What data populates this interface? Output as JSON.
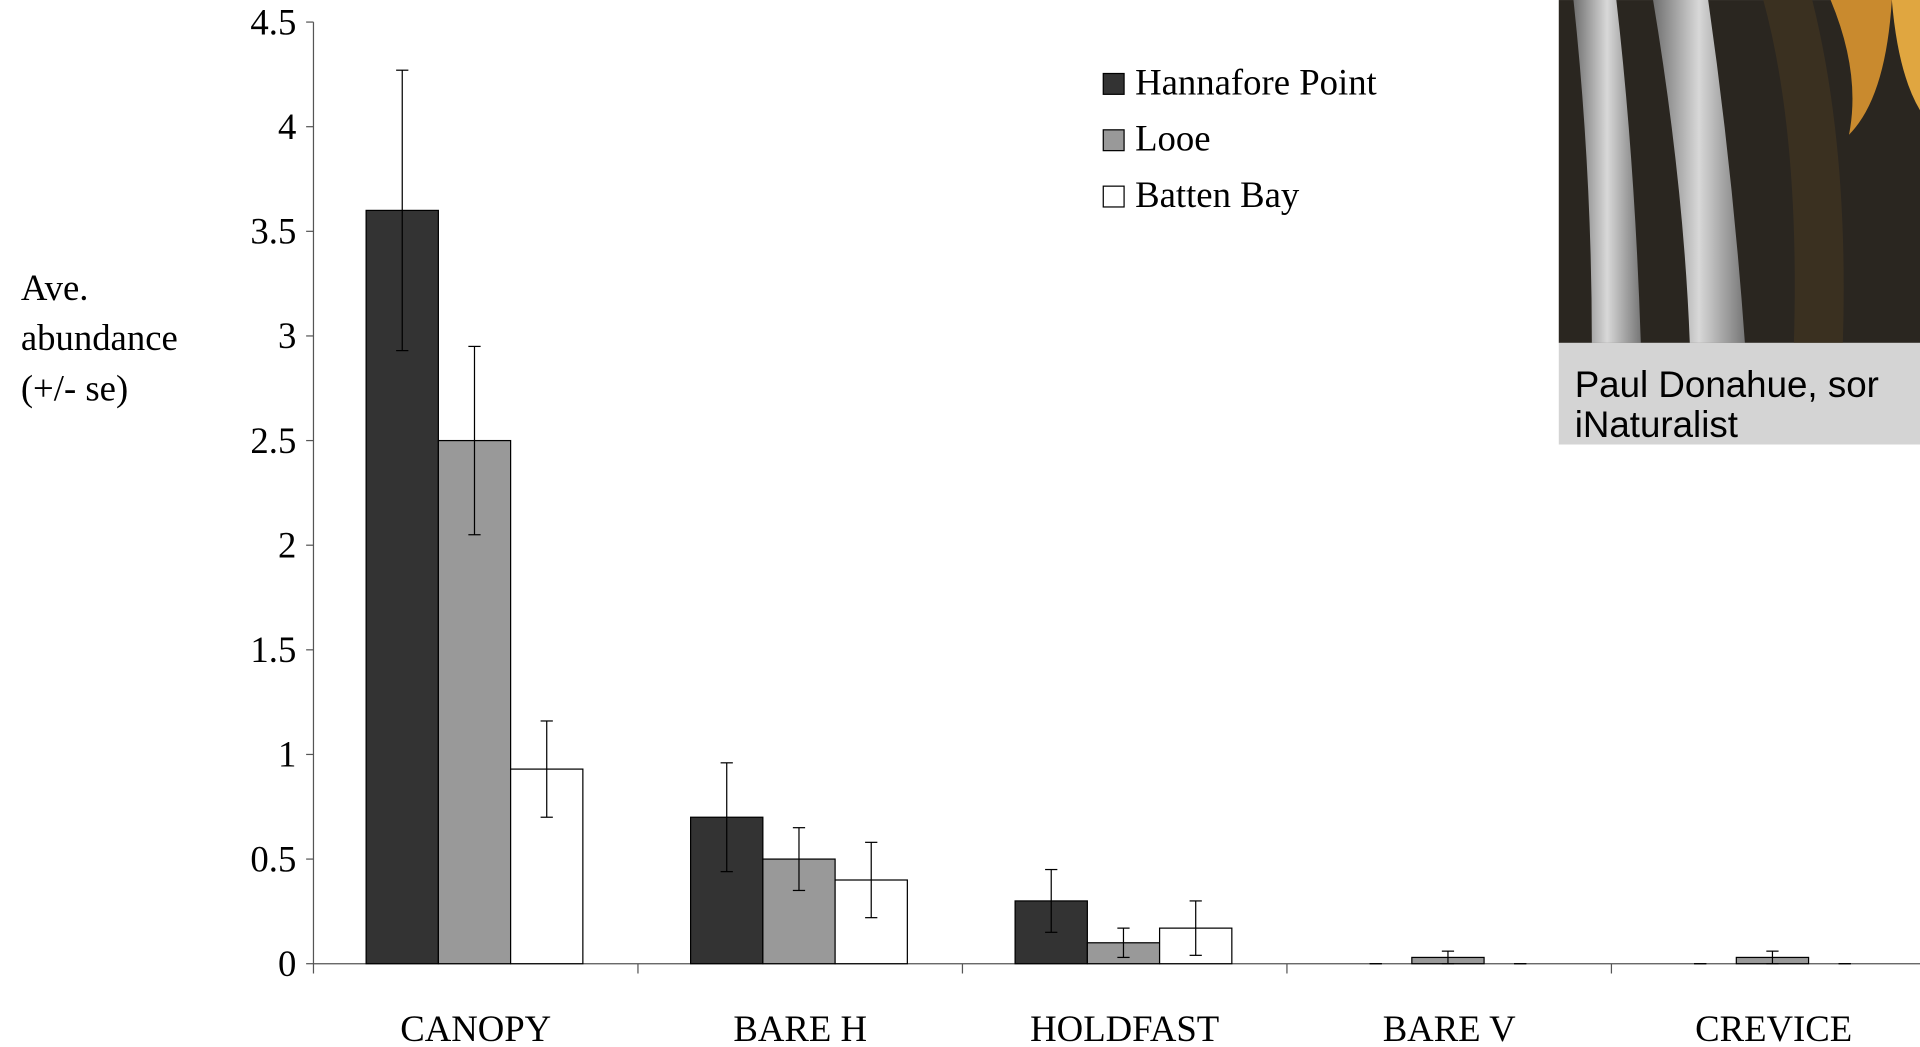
{
  "chart_data": {
    "type": "bar",
    "ylabel_lines": [
      "Ave.",
      "abundance",
      "(+/- se)"
    ],
    "categories": [
      "CANOPY",
      "BARE H",
      "HOLDFAST",
      "BARE V",
      "CREVICE"
    ],
    "series": [
      {
        "name": "Hannafore Point",
        "color": "#333333",
        "values": [
          3.6,
          0.7,
          0.3,
          0,
          0
        ],
        "errors": [
          0.67,
          0.26,
          0.15,
          0,
          0
        ]
      },
      {
        "name": "Looe",
        "color": "#999999",
        "values": [
          2.5,
          0.5,
          0.1,
          0.03,
          0.03
        ],
        "errors": [
          0.45,
          0.15,
          0.07,
          0.03,
          0.03
        ]
      },
      {
        "name": "Batten Bay",
        "color": "#ffffff",
        "values": [
          0.93,
          0.4,
          0.17,
          0,
          0
        ],
        "errors": [
          0.23,
          0.18,
          0.13,
          0,
          0
        ]
      }
    ],
    "ylim": [
      0,
      4.5
    ],
    "yticks": [
      0,
      0.5,
      1,
      1.5,
      2,
      2.5,
      3,
      3.5,
      4,
      4.5
    ],
    "legend": "top-right"
  },
  "photo_caption": {
    "line1": "Paul Donahue, sor",
    "line2": "iNaturalist"
  }
}
